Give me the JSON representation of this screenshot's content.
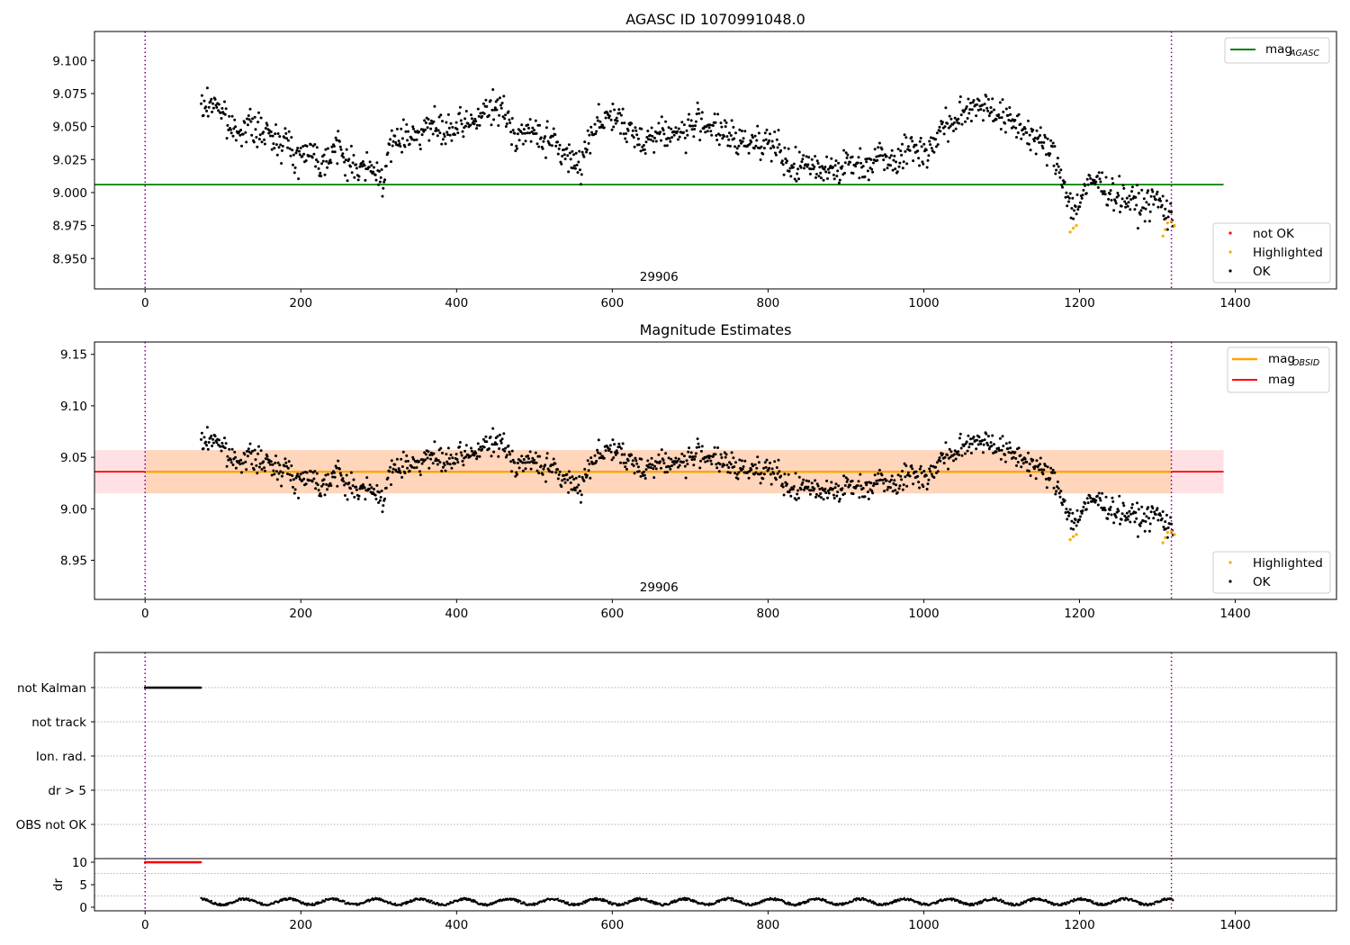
{
  "figure_title": "AGASC ID 1070991048.0",
  "colors": {
    "ok": "#000000",
    "highlighted": "#ffa500",
    "not_ok": "#ff0000",
    "mag_agasc": "#008000",
    "mag_obsid": "#ffa500",
    "mag": "#ff0000",
    "band_obsid": "#ffd2b4",
    "band_mag": "#ffdce1",
    "obs_line": "#800080",
    "grid": "#b0b0b0"
  },
  "chart_data": [
    {
      "type": "scatter",
      "id": "agasc",
      "title": "AGASC ID 1070991048.0",
      "xlim": [
        -65,
        1530
      ],
      "ylim": [
        8.927,
        9.122
      ],
      "x_ticks": [
        0,
        200,
        400,
        600,
        800,
        1000,
        1200,
        1400
      ],
      "y_ticks": [
        8.95,
        8.975,
        9.0,
        9.025,
        9.05,
        9.075,
        9.1
      ],
      "y_tick_labels": [
        "8.950",
        "8.975",
        "9.000",
        "9.025",
        "9.050",
        "9.075",
        "9.100"
      ],
      "obs_label": "29906",
      "obs_label_x": 660,
      "obs_boundaries": [
        0,
        1318
      ],
      "hlines": [
        {
          "name": "mag_AGASC",
          "value": 9.006,
          "x_range": [
            -65,
            1385
          ],
          "color_key": "mag_agasc"
        }
      ],
      "legend_lines": [
        {
          "name": "mag",
          "sub": "AGASC",
          "color_key": "mag_agasc"
        }
      ],
      "legend_points": [
        {
          "name": "not OK",
          "color_key": "not_ok"
        },
        {
          "name": "Highlighted",
          "color_key": "highlighted"
        },
        {
          "name": "OK",
          "color_key": "ok"
        }
      ],
      "anchors": [
        [
          70,
          9.062
        ],
        [
          90,
          9.07
        ],
        [
          110,
          9.048
        ],
        [
          135,
          9.05
        ],
        [
          160,
          9.042
        ],
        [
          180,
          9.04
        ],
        [
          195,
          9.025
        ],
        [
          210,
          9.035
        ],
        [
          225,
          9.022
        ],
        [
          245,
          9.035
        ],
        [
          265,
          9.02
        ],
        [
          285,
          9.018
        ],
        [
          305,
          9.012
        ],
        [
          320,
          9.04
        ],
        [
          345,
          9.045
        ],
        [
          365,
          9.05
        ],
        [
          385,
          9.045
        ],
        [
          410,
          9.05
        ],
        [
          435,
          9.06
        ],
        [
          455,
          9.065
        ],
        [
          475,
          9.045
        ],
        [
          500,
          9.045
        ],
        [
          520,
          9.04
        ],
        [
          545,
          9.025
        ],
        [
          560,
          9.022
        ],
        [
          575,
          9.05
        ],
        [
          600,
          9.06
        ],
        [
          620,
          9.045
        ],
        [
          640,
          9.04
        ],
        [
          660,
          9.045
        ],
        [
          690,
          9.045
        ],
        [
          715,
          9.055
        ],
        [
          740,
          9.045
        ],
        [
          760,
          9.038
        ],
        [
          785,
          9.04
        ],
        [
          805,
          9.038
        ],
        [
          825,
          9.02
        ],
        [
          845,
          9.02
        ],
        [
          865,
          9.02
        ],
        [
          885,
          9.018
        ],
        [
          905,
          9.022
        ],
        [
          925,
          9.02
        ],
        [
          945,
          9.03
        ],
        [
          965,
          9.025
        ],
        [
          985,
          9.035
        ],
        [
          1005,
          9.03
        ],
        [
          1025,
          9.05
        ],
        [
          1045,
          9.055
        ],
        [
          1065,
          9.068
        ],
        [
          1085,
          9.065
        ],
        [
          1105,
          9.055
        ],
        [
          1125,
          9.05
        ],
        [
          1145,
          9.04
        ],
        [
          1165,
          9.03
        ],
        [
          1180,
          9.008
        ],
        [
          1192,
          8.985
        ],
        [
          1205,
          9.0
        ],
        [
          1220,
          9.01
        ],
        [
          1240,
          9.0
        ],
        [
          1260,
          8.995
        ],
        [
          1280,
          8.99
        ],
        [
          1300,
          8.995
        ],
        [
          1318,
          8.98
        ]
      ],
      "highlighted_anchors": [
        [
          1188,
          8.97
        ],
        [
          1192,
          8.973
        ],
        [
          1196,
          8.975
        ],
        [
          1307,
          8.967
        ],
        [
          1310,
          8.972
        ],
        [
          1313,
          8.977
        ],
        [
          1318,
          8.978
        ],
        [
          1322,
          8.975
        ]
      ],
      "x_extent": [
        72,
        1320
      ],
      "n_points": 1250,
      "noise_amp": 0.011,
      "seed": 7
    },
    {
      "type": "scatter",
      "id": "mag",
      "title": "Magnitude Estimates",
      "xlim": [
        -65,
        1530
      ],
      "ylim": [
        8.912,
        9.162
      ],
      "x_ticks": [
        0,
        200,
        400,
        600,
        800,
        1000,
        1200,
        1400
      ],
      "y_ticks": [
        8.95,
        9.0,
        9.05,
        9.1,
        9.15
      ],
      "y_tick_labels": [
        "8.95",
        "9.00",
        "9.05",
        "9.10",
        "9.15"
      ],
      "obs_label": "29906",
      "obs_label_x": 660,
      "obs_boundaries": [
        0,
        1318
      ],
      "bands": [
        {
          "name": "mag",
          "y": [
            9.015,
            9.057
          ],
          "x_range": [
            -65,
            1385
          ],
          "color_key": "band_mag"
        },
        {
          "name": "mag_OBSID",
          "y": [
            9.015,
            9.057
          ],
          "x_range": [
            0,
            1318
          ],
          "color_key": "band_obsid"
        }
      ],
      "hlines": [
        {
          "name": "mag",
          "value": 9.036,
          "x_range": [
            -65,
            1385
          ],
          "color_key": "mag"
        },
        {
          "name": "mag_OBSID",
          "value": 9.036,
          "x_range": [
            0,
            1318
          ],
          "color_key": "mag_obsid"
        }
      ],
      "legend_lines": [
        {
          "name": "mag",
          "sub": "OBSID",
          "color_key": "mag_obsid"
        },
        {
          "name": "mag",
          "sub": "",
          "color_key": "mag"
        }
      ],
      "legend_points": [
        {
          "name": "Highlighted",
          "color_key": "highlighted"
        },
        {
          "name": "OK",
          "color_key": "ok"
        }
      ]
    },
    {
      "type": "scatter",
      "id": "flags",
      "xlim": [
        -65,
        1530
      ],
      "y_categories": [
        "not Kalman",
        "not track",
        "Ion. rad.",
        "dr > 5",
        "OBS not OK"
      ],
      "flag_segments": [
        {
          "category": "not Kalman",
          "x_range": [
            0,
            72
          ]
        }
      ],
      "obs_boundaries": [
        0,
        1318
      ]
    },
    {
      "type": "line",
      "id": "dr",
      "xlim": [
        -65,
        1530
      ],
      "ylim": [
        -0.8,
        10.8
      ],
      "x_ticks": [
        0,
        200,
        400,
        600,
        800,
        1000,
        1200,
        1400
      ],
      "x_tick_labels": [
        "0",
        "200",
        "400",
        "600",
        "800",
        "1000",
        "1200",
        "1400"
      ],
      "y_ticks": [
        0,
        5,
        10
      ],
      "y_tick_labels": [
        "0",
        "5",
        "10"
      ],
      "ylabel": "dr",
      "clipped": {
        "x_range": [
          0,
          72
        ],
        "value": 10
      },
      "x_extent": [
        72,
        1320
      ],
      "typical": 1.2,
      "amp": 0.7,
      "obs_boundaries": [
        0,
        1318
      ]
    }
  ]
}
